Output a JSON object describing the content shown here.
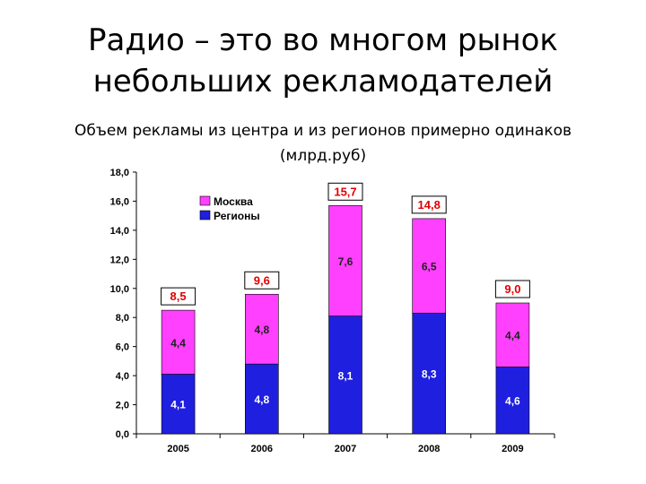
{
  "slide": {
    "title": "Радио – это во многом рынок\nнебольших рекламодателей",
    "subtitle": "Объем рекламы из центра и из регионов примерно одинаков\n(млрд.руб)"
  },
  "colors": {
    "moscow": "#ff40ff",
    "regions": "#1f1fe0",
    "total_label": "#e00000",
    "axis": "#000000"
  },
  "chart_data": {
    "type": "bar",
    "stacked": true,
    "categories": [
      "2005",
      "2006",
      "2007",
      "2008",
      "2009"
    ],
    "series": [
      {
        "name": "Регионы",
        "values": [
          4.1,
          4.8,
          8.1,
          8.3,
          4.6
        ],
        "labels": [
          "4,1",
          "4,8",
          "8,1",
          "8,3",
          "4,6"
        ]
      },
      {
        "name": "Москва",
        "values": [
          4.4,
          4.8,
          7.6,
          6.5,
          4.4
        ],
        "labels": [
          "4,4",
          "4,8",
          "7,6",
          "6,5",
          "4,4"
        ]
      }
    ],
    "totals": [
      8.5,
      9.6,
      15.7,
      14.8,
      9.0
    ],
    "total_labels": [
      "8,5",
      "9,6",
      "15,7",
      "14,8",
      "9,0"
    ],
    "ylim": [
      0,
      18
    ],
    "yticks": [
      "0,0",
      "2,0",
      "4,0",
      "6,0",
      "8,0",
      "10,0",
      "12,0",
      "14,0",
      "16,0",
      "18,0"
    ],
    "legend": {
      "position": "top-left",
      "entries": [
        "Москва",
        "Регионы"
      ]
    },
    "grid": false
  }
}
